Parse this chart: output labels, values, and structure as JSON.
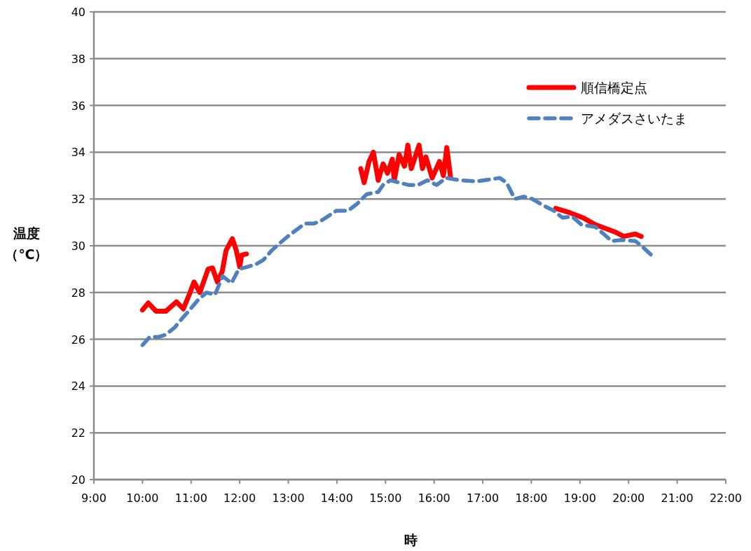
{
  "chart_data": {
    "type": "line",
    "xlabel": "時",
    "ylabel": "温度（℃）",
    "xlim": [
      9,
      22
    ],
    "xticks": [
      {
        "value": 9,
        "label": "9:00"
      },
      {
        "value": 10,
        "label": "10:00"
      },
      {
        "value": 11,
        "label": "11:00"
      },
      {
        "value": 12,
        "label": "12:00"
      },
      {
        "value": 13,
        "label": "13:00"
      },
      {
        "value": 14,
        "label": "14:00"
      },
      {
        "value": 15,
        "label": "15:00"
      },
      {
        "value": 16,
        "label": "16:00"
      },
      {
        "value": 17,
        "label": "17:00"
      },
      {
        "value": 18,
        "label": "18:00"
      },
      {
        "value": 19,
        "label": "19:00"
      },
      {
        "value": 20,
        "label": "20:00"
      },
      {
        "value": 21,
        "label": "21:00"
      },
      {
        "value": 22,
        "label": "22:00"
      }
    ],
    "ylim": [
      20,
      40
    ],
    "yticks": [
      20,
      22,
      24,
      26,
      28,
      30,
      32,
      34,
      36,
      38,
      40
    ],
    "grid": "y",
    "legend": "top right",
    "marker": "none",
    "series": [
      {
        "name": "順信橋定点",
        "color": "#ff0000",
        "line_style": "solid",
        "x": [
          10.0,
          10.12,
          10.28,
          10.48,
          10.7,
          10.84,
          10.96,
          11.06,
          11.18,
          11.35,
          11.44,
          11.54,
          11.64,
          11.72,
          11.85,
          11.93,
          12.0,
          12.04,
          12.14
        ],
        "values": [
          27.25,
          27.55,
          27.2,
          27.2,
          27.6,
          27.3,
          27.9,
          28.45,
          28.0,
          29.0,
          29.05,
          28.45,
          28.9,
          29.8,
          30.3,
          29.8,
          29.1,
          29.6,
          29.65
        ]
      },
      {
        "color": "#ff0000",
        "line_style": "solid",
        "x": [
          14.49,
          14.56,
          14.66,
          14.75,
          14.85,
          14.95,
          15.04,
          15.14,
          15.18,
          15.28,
          15.39,
          15.46,
          15.53,
          15.69,
          15.76,
          15.83,
          15.96,
          16.11,
          16.19,
          16.26,
          16.34
        ],
        "values": [
          33.3,
          32.7,
          33.6,
          34.0,
          32.8,
          33.5,
          33.1,
          33.7,
          32.8,
          33.9,
          33.4,
          34.3,
          33.3,
          34.3,
          33.3,
          33.8,
          32.9,
          33.6,
          33.0,
          34.2,
          32.9
        ]
      },
      {
        "color": "#ff0000",
        "line_style": "solid",
        "x": [
          18.5,
          18.74,
          19.06,
          19.32,
          19.71,
          19.9,
          20.14,
          20.26
        ],
        "values": [
          31.6,
          31.45,
          31.2,
          30.9,
          30.6,
          30.4,
          30.5,
          30.4
        ]
      },
      {
        "name": "アメダスさいたま",
        "color": "#4f81bd",
        "line_style": "dashed",
        "x": [
          10.0,
          10.15,
          10.33,
          10.48,
          10.66,
          10.82,
          10.99,
          11.15,
          11.32,
          11.49,
          11.65,
          11.83,
          11.98,
          12.16,
          12.33,
          12.49,
          12.66,
          12.82,
          12.99,
          13.34,
          13.53,
          13.7,
          13.99,
          14.23,
          14.42,
          14.61,
          14.85,
          14.95,
          15.1,
          15.28,
          15.47,
          15.67,
          15.86,
          16.05,
          16.25,
          16.54,
          16.87,
          17.35,
          17.49,
          17.66,
          17.84,
          18.02,
          18.27,
          18.46,
          18.64,
          18.84,
          19.03,
          19.32,
          19.49,
          19.65,
          19.85,
          20.14,
          20.29,
          20.52
        ],
        "values": [
          25.75,
          26.1,
          26.1,
          26.2,
          26.5,
          26.9,
          27.3,
          27.7,
          28.0,
          27.9,
          28.7,
          28.4,
          29.0,
          29.1,
          29.2,
          29.4,
          29.8,
          30.1,
          30.4,
          30.95,
          30.95,
          31.1,
          31.5,
          31.5,
          31.8,
          32.2,
          32.3,
          32.6,
          32.8,
          32.7,
          32.6,
          32.6,
          32.8,
          32.6,
          32.9,
          32.8,
          32.75,
          32.9,
          32.7,
          32.0,
          32.1,
          32.0,
          31.7,
          31.5,
          31.2,
          31.25,
          30.9,
          30.8,
          30.5,
          30.2,
          30.25,
          30.2,
          29.95,
          29.5
        ]
      }
    ]
  }
}
